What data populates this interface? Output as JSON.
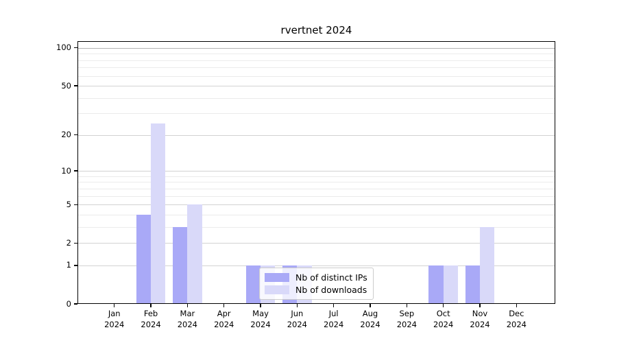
{
  "title": "rvertnet 2024",
  "chart_data": {
    "type": "bar",
    "title": "rvertnet 2024",
    "categories": [
      "Jan",
      "Feb",
      "Mar",
      "Apr",
      "May",
      "Jun",
      "Jul",
      "Aug",
      "Sep",
      "Oct",
      "Nov",
      "Dec"
    ],
    "x_tick_second_line": "2024",
    "series": [
      {
        "name": "Nb of distinct IPs",
        "color": "#a9a9f7",
        "values": [
          0,
          4,
          3,
          0,
          1,
          1,
          0,
          0,
          0,
          1,
          1,
          0
        ]
      },
      {
        "name": "Nb of downloads",
        "color": "#d9d9f9",
        "values": [
          0,
          25,
          5,
          0,
          1,
          1,
          0,
          0,
          0,
          1,
          3,
          0
        ]
      }
    ],
    "xlabel": "",
    "ylabel": "",
    "y_axis": {
      "scale": "log10(1+y)",
      "major_ticks": [
        0,
        1,
        2,
        5,
        10,
        20,
        50,
        100
      ],
      "minor_gridlines": [
        3,
        4,
        6,
        7,
        8,
        9,
        30,
        40,
        60,
        70,
        80,
        90
      ],
      "max": 113
    },
    "legend": {
      "entries": [
        "Nb of distinct IPs",
        "Nb of downloads"
      ],
      "position": "lower center"
    },
    "grid": true
  },
  "colors": {
    "grid_major": "#d2d2d2",
    "grid_top": "#b3b3b3",
    "grid_minor": "#ebebeb",
    "spine": "#000000",
    "legend_border": "#cccccc"
  }
}
